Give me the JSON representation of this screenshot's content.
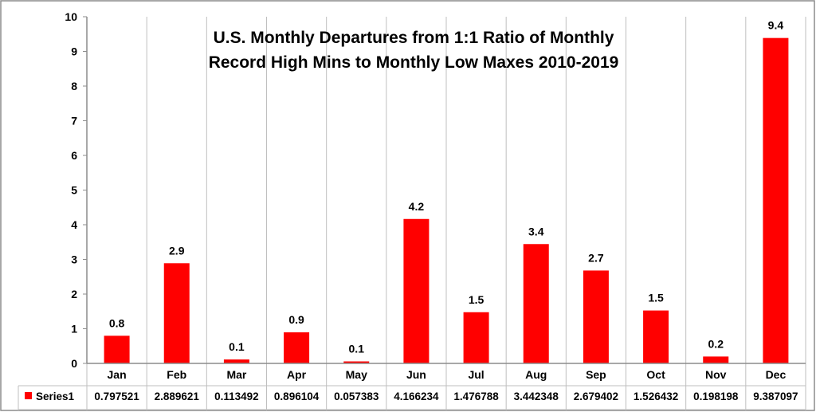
{
  "chart_data": {
    "type": "bar",
    "title_lines": [
      "U.S. Monthly Departures from 1:1 Ratio of Monthly",
      "Record High Mins to Monthly Low Maxes 2010-2019"
    ],
    "categories": [
      "Jan",
      "Feb",
      "Mar",
      "Apr",
      "May",
      "Jun",
      "Jul",
      "Aug",
      "Sep",
      "Oct",
      "Nov",
      "Dec"
    ],
    "series": [
      {
        "name": "Series1",
        "color": "#ff0000",
        "values": [
          0.797521,
          2.889621,
          0.113492,
          0.896104,
          0.057383,
          4.166234,
          1.476788,
          3.442348,
          2.679402,
          1.526432,
          0.198198,
          9.387097
        ],
        "value_text": [
          "0.797521",
          "2.889621",
          "0.113492",
          "0.896104",
          "0.057383",
          "4.166234",
          "1.476788",
          "3.442348",
          "2.679402",
          "1.526432",
          "0.198198",
          "9.387097"
        ],
        "data_labels": [
          "0.8",
          "2.9",
          "0.1",
          "0.9",
          "0.1",
          "4.2",
          "1.5",
          "3.4",
          "2.7",
          "1.5",
          "0.2",
          "9.4"
        ]
      }
    ],
    "y_ticks": [
      "0",
      "1",
      "2",
      "3",
      "4",
      "5",
      "6",
      "7",
      "8",
      "9",
      "10"
    ],
    "ylim": [
      0,
      10
    ],
    "grid": "vertical-category-lines",
    "legend": "data-table-left",
    "data_table": true
  }
}
